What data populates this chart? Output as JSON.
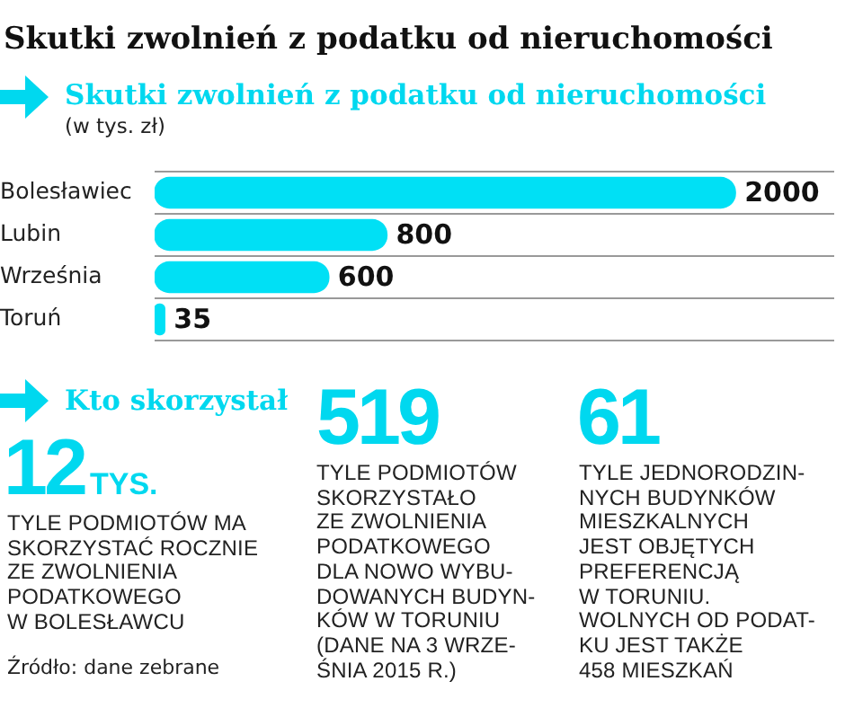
{
  "chart_data": [
    {
      "type": "bar",
      "orientation": "horizontal",
      "title": "Skutki zwolnień z podatku od nieruchomości",
      "subtitle": "Skutki zwolnień z podatku od nieruchomości",
      "annotations": [
        "(w tys. zł)"
      ],
      "categories": [
        "Bolesławiec",
        "Lubin",
        "Września",
        "Toruń"
      ],
      "values": [
        2000,
        800,
        600,
        35
      ],
      "color": "#00e0f5",
      "data_labels": true,
      "grid": "y",
      "legend": false,
      "tick_labels": "y"
    },
    {
      "type": "other",
      "title": "Kto skorzystał",
      "annotations": [
        "12",
        "TYS.",
        "TYLE PODMIOTÓW MA\nSKORZYSTAĆ ROCZNIE\nZE ZWOLNIENIA\nPODATKOWEGO\nW BOLESŁAWCU",
        "519",
        "TYLE PODMIOTÓW\nSKORZYSTAŁO\nZE ZWOLNIENIA\nPODATKOWEGO\nDLA NOWO WYBU-\nDOWANYCH BUDYN-\nKÓW W TORUNIU\n(DANE NA 3 WRZE-\nŚNIA 2015 R.)",
        "61",
        "TYLE JEDNORODZIN-\nNYCH BUDYNKÓW\nMIESZKALNYCH\nJEST OBJĘTYCH\nPREFERENCJĄ\nW TORUNIU.\nWOLNYCH OD PODAT-\nKU JEST TAKŻE\n458 MIESZKAŃ",
        "Źródło: dane zebrane"
      ]
    }
  ]
}
